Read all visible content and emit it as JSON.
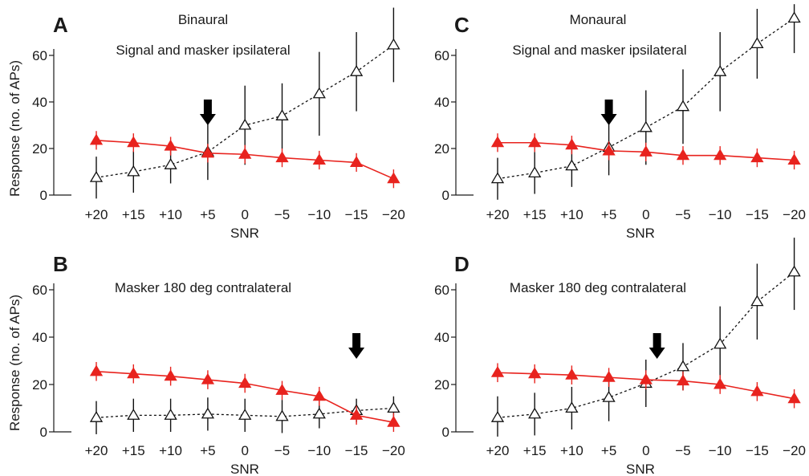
{
  "chart_data": [
    {
      "type": "line",
      "panel": "A",
      "title": "Binaural",
      "subtitle": "Signal and masker ipsilateral",
      "xlabel": "SNR",
      "ylabel": "Response (no. of APs)",
      "categories": [
        "+20",
        "+15",
        "+10",
        "+5",
        "0",
        "−5",
        "−10",
        "−15",
        "−20"
      ],
      "ylim": [
        0,
        70
      ],
      "yticks": [
        "0",
        "20",
        "40",
        "60"
      ],
      "arrow_at": 5,
      "series": [
        {
          "values": [
            23.5,
            22.5,
            21,
            18,
            17.5,
            16,
            15,
            14,
            7
          ],
          "err": [
            4,
            4,
            4,
            4,
            4,
            4,
            4,
            4,
            4
          ],
          "color": "#e8231e",
          "marker": "filled-triangle",
          "line": "solid"
        },
        {
          "values": [
            7.5,
            10,
            13,
            18.5,
            30,
            34,
            43.5,
            53,
            64.5
          ],
          "err": [
            9,
            9,
            8,
            12,
            17,
            14,
            18,
            17,
            16
          ],
          "color": "#111111",
          "marker": "open-triangle",
          "line": "dashed"
        }
      ]
    },
    {
      "type": "line",
      "panel": "B",
      "title": "Masker 180 deg contralateral",
      "xlabel": "SNR",
      "ylabel": "Response (no. of APs)",
      "categories": [
        "+20",
        "+15",
        "+10",
        "+5",
        "0",
        "−5",
        "−10",
        "−15",
        "−20"
      ],
      "ylim": [
        0,
        70
      ],
      "yticks": [
        "0",
        "20",
        "40",
        "60"
      ],
      "arrow_at": -15,
      "series": [
        {
          "values": [
            25.5,
            24.5,
            23.5,
            22,
            20.5,
            17.5,
            15,
            7,
            4
          ],
          "err": [
            4,
            4,
            4,
            4,
            4,
            4,
            4,
            4,
            4
          ],
          "color": "#e8231e",
          "marker": "filled-triangle",
          "line": "solid"
        },
        {
          "values": [
            6,
            7,
            7,
            7.5,
            7,
            6.5,
            7.5,
            9,
            10
          ],
          "err": [
            7,
            7,
            7,
            7,
            7,
            7,
            6,
            5,
            5
          ],
          "color": "#111111",
          "marker": "open-triangle",
          "line": "dashed"
        }
      ]
    },
    {
      "type": "line",
      "panel": "C",
      "title": "Monaural",
      "subtitle": "Signal and masker ipsilateral",
      "xlabel": "SNR",
      "ylabel": "",
      "categories": [
        "+20",
        "+15",
        "+10",
        "+5",
        "0",
        "−5",
        "−10",
        "−15",
        "−20"
      ],
      "ylim": [
        0,
        70
      ],
      "yticks": [
        "0",
        "20",
        "40",
        "60"
      ],
      "arrow_at": 5,
      "series": [
        {
          "values": [
            22.5,
            22.5,
            21.5,
            19,
            18.5,
            17,
            17,
            16,
            15
          ],
          "err": [
            4,
            4,
            4,
            4,
            4,
            4,
            4,
            4,
            4
          ],
          "color": "#e8231e",
          "marker": "filled-triangle",
          "line": "solid"
        },
        {
          "values": [
            7,
            9.5,
            12.5,
            20.5,
            29,
            38,
            53,
            65,
            76
          ],
          "err": [
            9,
            9,
            9,
            12,
            16,
            16,
            17,
            15,
            15
          ],
          "color": "#111111",
          "marker": "open-triangle",
          "line": "dashed"
        }
      ]
    },
    {
      "type": "line",
      "panel": "D",
      "title": "Masker 180 deg contralateral",
      "xlabel": "SNR",
      "ylabel": "",
      "categories": [
        "+20",
        "+15",
        "+10",
        "+5",
        "0",
        "−5",
        "−10",
        "−15",
        "−20"
      ],
      "ylim": [
        0,
        70
      ],
      "yticks": [
        "0",
        "20",
        "40",
        "60"
      ],
      "arrow_at": -1.5,
      "series": [
        {
          "values": [
            25,
            24.5,
            24,
            23,
            22,
            21.5,
            20,
            17,
            14
          ],
          "err": [
            4,
            4,
            4,
            4,
            4,
            4,
            4,
            4,
            4
          ],
          "color": "#e8231e",
          "marker": "filled-triangle",
          "line": "solid"
        },
        {
          "values": [
            6,
            7.5,
            10,
            14.5,
            20.5,
            27.5,
            37,
            55,
            67.5
          ],
          "err": [
            9,
            9,
            9,
            10,
            10,
            10,
            16,
            16,
            16
          ],
          "color": "#111111",
          "marker": "open-triangle",
          "line": "dashed"
        }
      ]
    }
  ]
}
